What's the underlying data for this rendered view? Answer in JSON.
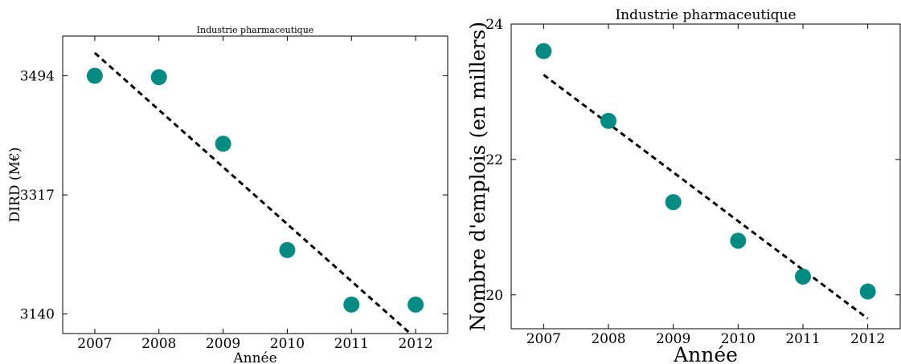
{
  "chart_data": [
    {
      "type": "scatter",
      "title": "Industrie pharmaceutique",
      "xlabel": "Année",
      "ylabel": "DIRD (M€)",
      "x": [
        2007,
        2008,
        2009,
        2010,
        2011,
        2012
      ],
      "series": [
        {
          "values": [
            3494,
            3492,
            3393,
            3235,
            3154,
            3154
          ],
          "color": "#008b83"
        }
      ],
      "trendline": {
        "x": [
          2007,
          2012
        ],
        "y": [
          3528,
          3104
        ],
        "style": "dashed",
        "color": "#000000"
      },
      "xlim": [
        2006.5,
        2012.5
      ],
      "ylim": [
        3111,
        3553
      ],
      "xticks": [
        "2007",
        "2008",
        "2009",
        "2010",
        "2011",
        "2012"
      ],
      "yticks": [
        "3140",
        "3317",
        "3494"
      ],
      "grid": false
    },
    {
      "type": "scatter",
      "title": "Industrie pharmaceutique",
      "xlabel": "Année",
      "ylabel": "Nombre d'emplois (en millers)",
      "x": [
        2007,
        2008,
        2009,
        2010,
        2011,
        2012
      ],
      "series": [
        {
          "values": [
            23.6,
            22.57,
            21.37,
            20.8,
            20.27,
            20.05
          ],
          "color": "#008b83"
        }
      ],
      "trendline": {
        "x": [
          2007,
          2012
        ],
        "y": [
          23.25,
          19.65
        ],
        "style": "dashed",
        "color": "#000000"
      },
      "xlim": [
        2006.5,
        2012.5
      ],
      "ylim": [
        19.5,
        24.0
      ],
      "xticks": [
        "2007",
        "2008",
        "2009",
        "2010",
        "2011",
        "2012"
      ],
      "yticks": [
        "20",
        "22",
        "24"
      ],
      "grid": false
    }
  ]
}
